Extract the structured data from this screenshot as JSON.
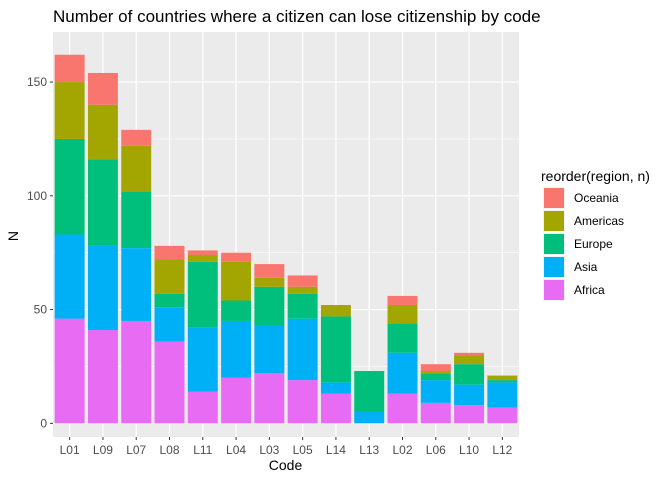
{
  "chart_data": {
    "type": "bar",
    "stacked": true,
    "title": "Number of countries where a citizen can lose citizenship by code",
    "xlabel": "Code",
    "ylabel": "N",
    "categories": [
      "L01",
      "L09",
      "L07",
      "L08",
      "L11",
      "L04",
      "L03",
      "L05",
      "L14",
      "L13",
      "L02",
      "L06",
      "L10",
      "L12"
    ],
    "ylim": [
      -6,
      172
    ],
    "yticks": [
      0,
      50,
      100,
      150
    ],
    "grid": true,
    "legend": {
      "title": "reorder(region, n)",
      "position": "right"
    },
    "series": [
      {
        "name": "Africa",
        "color": "#E76BF3",
        "values": [
          46,
          41,
          45,
          36,
          14,
          20,
          22,
          19,
          13,
          0,
          13,
          9,
          8,
          7
        ]
      },
      {
        "name": "Asia",
        "color": "#00B0F6",
        "values": [
          37,
          37,
          32,
          15,
          28,
          25,
          21,
          27,
          5,
          5,
          18,
          10,
          9,
          11
        ]
      },
      {
        "name": "Europe",
        "color": "#00BF7D",
        "values": [
          42,
          38,
          25,
          6,
          29,
          9,
          17,
          11,
          29,
          18,
          13,
          3,
          9,
          1
        ]
      },
      {
        "name": "Americas",
        "color": "#A3A500",
        "values": [
          25,
          24,
          20,
          15,
          3,
          17,
          4,
          3,
          5,
          0,
          8,
          1,
          4,
          2
        ]
      },
      {
        "name": "Oceania",
        "color": "#F8766D",
        "values": [
          12,
          14,
          7,
          6,
          2,
          4,
          6,
          5,
          0,
          0,
          4,
          3,
          1,
          0
        ]
      }
    ]
  }
}
